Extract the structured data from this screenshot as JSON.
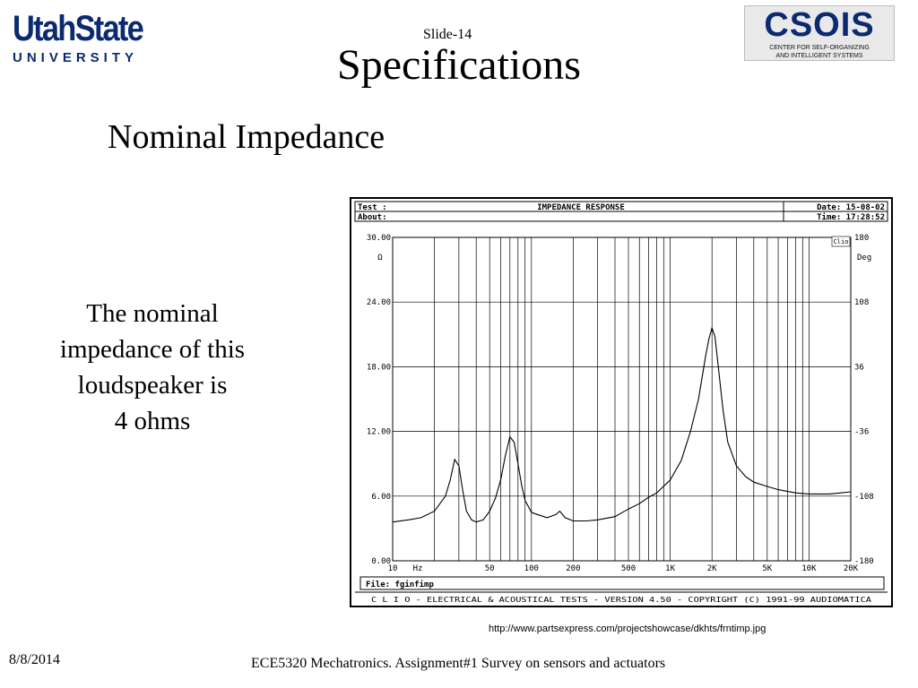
{
  "header": {
    "usu_logo": {
      "main": "UtahState",
      "sub": "UNIVERSITY"
    },
    "csois_logo": {
      "title": "CSOIS",
      "line1": "CENTER FOR SELF-ORGANIZING",
      "line2": "AND INTELLIGENT SYSTEMS"
    },
    "slide_number": "Slide-14",
    "title": "Specifications"
  },
  "subtitle": "Nominal Impedance",
  "body": {
    "lines": [
      "The nominal",
      "impedance of this",
      "loudspeaker is",
      "4 ohms"
    ]
  },
  "chart_panel": {
    "test_label": "Test :",
    "about_label": "About:",
    "heading": "IMPEDANCE RESPONSE",
    "date": "Date: 15-08-02",
    "time": "Time: 17:28:52",
    "left_unit": "Ω",
    "right_unit": "Deg",
    "corner_mark": "Clio",
    "x_unit_label": "Hz",
    "file": "File: fginfimp",
    "copyright": "C L I O  -  ELECTRICAL & ACOUSTICAL TESTS  -  VERSION 4.50  -  COPYRIGHT (C) 1991-99 AUDIOMATICA"
  },
  "chart_data": {
    "type": "line",
    "title": "IMPEDANCE RESPONSE",
    "x_scale": "log",
    "xlim": [
      10,
      20000
    ],
    "ylim": [
      0,
      30
    ],
    "y2lim": [
      -180,
      180
    ],
    "grid": true,
    "x_ticks": [
      "10",
      "50",
      "100",
      "200",
      "500",
      "1K",
      "2K",
      "5K",
      "10K",
      "20K"
    ],
    "y_ticks": [
      "30.00",
      "24.00",
      "18.00",
      "12.00",
      "6.00",
      "0.00"
    ],
    "y2_ticks": [
      "180",
      "108",
      "36",
      "-36",
      "-108",
      "-180"
    ],
    "series": [
      {
        "x": [
          10,
          13,
          16,
          20,
          24,
          26,
          28,
          30,
          32,
          34,
          37,
          40,
          45,
          50,
          55,
          60,
          65,
          70,
          75,
          80,
          85,
          90,
          100,
          110,
          130,
          150,
          160,
          175,
          200,
          250,
          300,
          400,
          500,
          600,
          700,
          800,
          1000,
          1200,
          1400,
          1600,
          1800,
          1900,
          2000,
          2100,
          2200,
          2400,
          2600,
          3000,
          3500,
          4000,
          5000,
          6000,
          8000,
          10000,
          14000,
          17000,
          20000
        ],
        "values": [
          3.6,
          3.8,
          4.0,
          4.6,
          6.0,
          7.5,
          9.4,
          8.8,
          6.5,
          4.6,
          3.8,
          3.6,
          3.8,
          4.6,
          5.8,
          7.5,
          9.8,
          11.5,
          11.0,
          9.0,
          7.0,
          5.6,
          4.5,
          4.3,
          4.0,
          4.3,
          4.6,
          4.0,
          3.7,
          3.7,
          3.8,
          4.1,
          4.8,
          5.3,
          5.9,
          6.3,
          7.5,
          9.3,
          12.0,
          15.0,
          19.0,
          20.6,
          21.6,
          20.8,
          18.5,
          14.0,
          11.0,
          8.8,
          7.8,
          7.3,
          6.9,
          6.6,
          6.3,
          6.2,
          6.2,
          6.3,
          6.4
        ]
      }
    ]
  },
  "source_url": "http://www.partsexpress.com/projectshowcase/dkhts/frntimp.jpg",
  "footer": {
    "date": "8/8/2014",
    "course": "ECE5320 Mechatronics. Assignment#1 Survey on sensors and actuators"
  }
}
